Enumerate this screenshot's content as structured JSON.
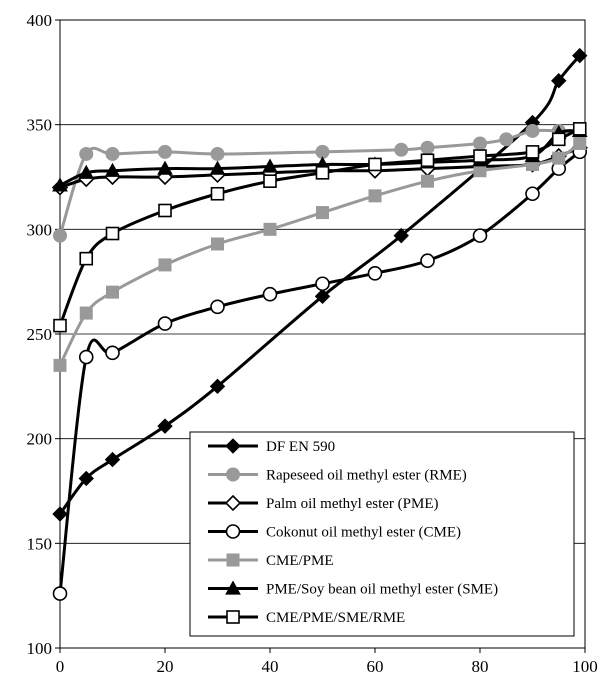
{
  "chart_data": {
    "type": "line",
    "title": "",
    "xlabel": "",
    "ylabel": "",
    "xlim": [
      0,
      100
    ],
    "ylim": [
      100,
      400
    ],
    "x_ticks": [
      0,
      20,
      40,
      60,
      80,
      100
    ],
    "y_ticks": [
      100,
      150,
      200,
      250,
      300,
      350,
      400
    ],
    "grid": "horizontal",
    "legend_position": "bottom-right",
    "series": [
      {
        "name": "DF EN 590",
        "color": "#000000",
        "marker": "diamond-filled",
        "x": [
          0,
          5,
          10,
          20,
          30,
          50,
          65,
          90,
          95,
          99
        ],
        "y": [
          164,
          181,
          190,
          206,
          225,
          268,
          297,
          351,
          371,
          383
        ]
      },
      {
        "name": "Rapeseed oil methyl ester (RME)",
        "color": "#999999",
        "marker": "circle-filled",
        "x": [
          0,
          5,
          10,
          20,
          30,
          50,
          65,
          70,
          80,
          85,
          90,
          95,
          99
        ],
        "y": [
          297,
          336,
          336,
          337,
          336,
          337,
          338,
          339,
          341,
          343,
          347,
          347,
          346
        ]
      },
      {
        "name": "Palm oil methyl ester (PME)",
        "color": "#000000",
        "marker": "diamond-open",
        "x": [
          0,
          5,
          10,
          20,
          30,
          40,
          50,
          60,
          70,
          80,
          90,
          95,
          99
        ],
        "y": [
          320,
          324,
          325,
          325,
          326,
          327,
          328,
          328,
          329,
          330,
          331,
          335,
          339
        ]
      },
      {
        "name": "Cokonut oil methyl ester (CME)",
        "color": "#000000",
        "marker": "circle-open",
        "x": [
          0,
          5,
          10,
          20,
          30,
          40,
          50,
          60,
          70,
          80,
          90,
          95,
          99
        ],
        "y": [
          126,
          239,
          241,
          255,
          263,
          269,
          274,
          279,
          285,
          297,
          317,
          329,
          337
        ]
      },
      {
        "name": "CME/PME",
        "color": "#999999",
        "marker": "square-filled",
        "x": [
          0,
          5,
          10,
          20,
          30,
          40,
          50,
          60,
          70,
          80,
          90,
          95,
          99
        ],
        "y": [
          235,
          260,
          270,
          283,
          293,
          300,
          308,
          316,
          323,
          328,
          331,
          334,
          341
        ]
      },
      {
        "name": "PME/Soy bean oil methyl ester (SME)",
        "color": "#000000",
        "marker": "triangle-filled",
        "x": [
          0,
          5,
          10,
          20,
          30,
          40,
          50,
          60,
          70,
          80,
          90,
          95,
          99
        ],
        "y": [
          321,
          327,
          328,
          329,
          329,
          330,
          331,
          331,
          332,
          333,
          335,
          346,
          347
        ]
      },
      {
        "name": "CME/PME/SME/RME",
        "color": "#000000",
        "marker": "square-open",
        "x": [
          0,
          5,
          10,
          20,
          30,
          40,
          50,
          60,
          70,
          80,
          90,
          95,
          99
        ],
        "y": [
          254,
          286,
          298,
          309,
          317,
          323,
          327,
          331,
          333,
          335,
          337,
          343,
          348
        ]
      }
    ]
  }
}
